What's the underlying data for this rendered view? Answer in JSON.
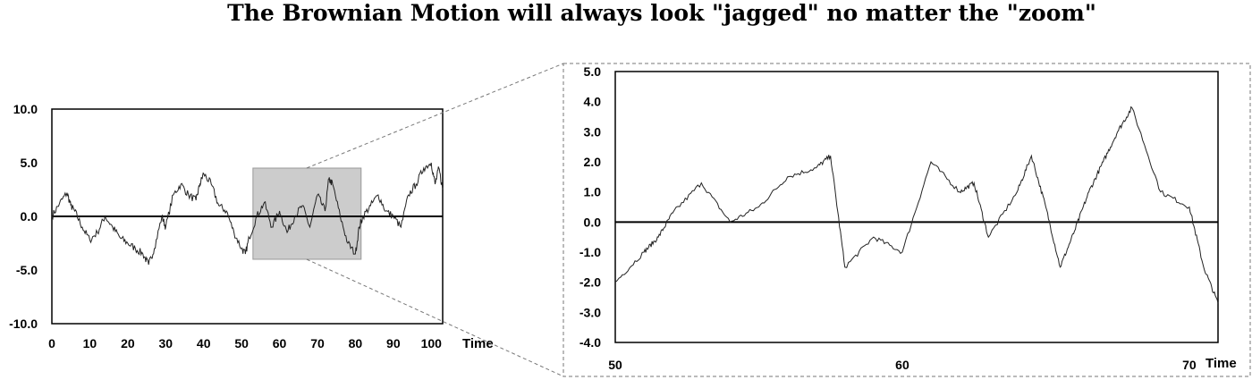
{
  "title": "The Brownian Motion will always look \"jagged\" no matter the \"zoom\"",
  "chart_data": [
    {
      "type": "line",
      "xlabel": "Time",
      "xlim": [
        0,
        103
      ],
      "ylim": [
        -10,
        10
      ],
      "x_ticks": [
        "0",
        "10",
        "20",
        "30",
        "40",
        "50",
        "60",
        "70",
        "80",
        "90",
        "100"
      ],
      "y_ticks": [
        "10.0",
        "5.0",
        "0.0",
        "-5.0",
        "-10.0"
      ],
      "zoom_box": {
        "x": [
          53,
          81.5
        ],
        "y": [
          -4,
          4.5
        ]
      },
      "series": [
        {
          "x": [
            0,
            2,
            4,
            5,
            6,
            8,
            10,
            12,
            14,
            16,
            18,
            20,
            22,
            24,
            25.5,
            27,
            29,
            30,
            32,
            34,
            36,
            38,
            39,
            40,
            42,
            44,
            46,
            48,
            50,
            51,
            52,
            54,
            56,
            58,
            60,
            62,
            64,
            66,
            68,
            70,
            72,
            73,
            74,
            76,
            78,
            80,
            81,
            82,
            84,
            86,
            88,
            90,
            92,
            94,
            96,
            98,
            100,
            101,
            102,
            103
          ],
          "y": [
            0,
            1.2,
            2.2,
            1,
            0.5,
            -1,
            -2.2,
            -1.5,
            0,
            -1,
            -2,
            -2.5,
            -3,
            -3.5,
            -4.5,
            -3,
            0,
            -1,
            2,
            3,
            2,
            1.5,
            3,
            4,
            3,
            1,
            0.5,
            -1.5,
            -3,
            -3.5,
            -2,
            0,
            1.3,
            -1,
            0.5,
            -1.5,
            0,
            1,
            -1,
            2,
            0.5,
            3.5,
            3,
            0,
            -2.5,
            -3.5,
            -1,
            0,
            1,
            2,
            0.5,
            0,
            -1,
            2,
            3,
            4.5,
            5,
            3,
            4.5,
            2.5
          ]
        }
      ]
    },
    {
      "type": "line",
      "xlabel": "Time",
      "xlim": [
        50,
        71
      ],
      "ylim": [
        -4,
        5
      ],
      "x_ticks": [
        "50",
        "60",
        "70"
      ],
      "y_ticks": [
        "5.0",
        "4.0",
        "3.0",
        "2.0",
        "1.0",
        "0.0",
        "-1.0",
        "-2.0",
        "-3.0",
        "-4.0"
      ],
      "series": [
        {
          "x": [
            50,
            51,
            51.5,
            52,
            53,
            54,
            55,
            56,
            57,
            57.5,
            58,
            59,
            60,
            61,
            62,
            62.5,
            63,
            64,
            64.5,
            65,
            65.5,
            66,
            66.5,
            67,
            67.5,
            68,
            69,
            70,
            70.5,
            71
          ],
          "y": [
            -2,
            -1,
            -0.5,
            0.3,
            1.3,
            0,
            0.5,
            1.5,
            1.8,
            2.2,
            -1.5,
            -0.5,
            -1,
            2,
            1,
            1.3,
            -0.5,
            1,
            2.2,
            0.5,
            -1.5,
            -0.3,
            1,
            2,
            3,
            3.8,
            1,
            0.5,
            -1.5,
            -2.7
          ]
        }
      ]
    }
  ]
}
